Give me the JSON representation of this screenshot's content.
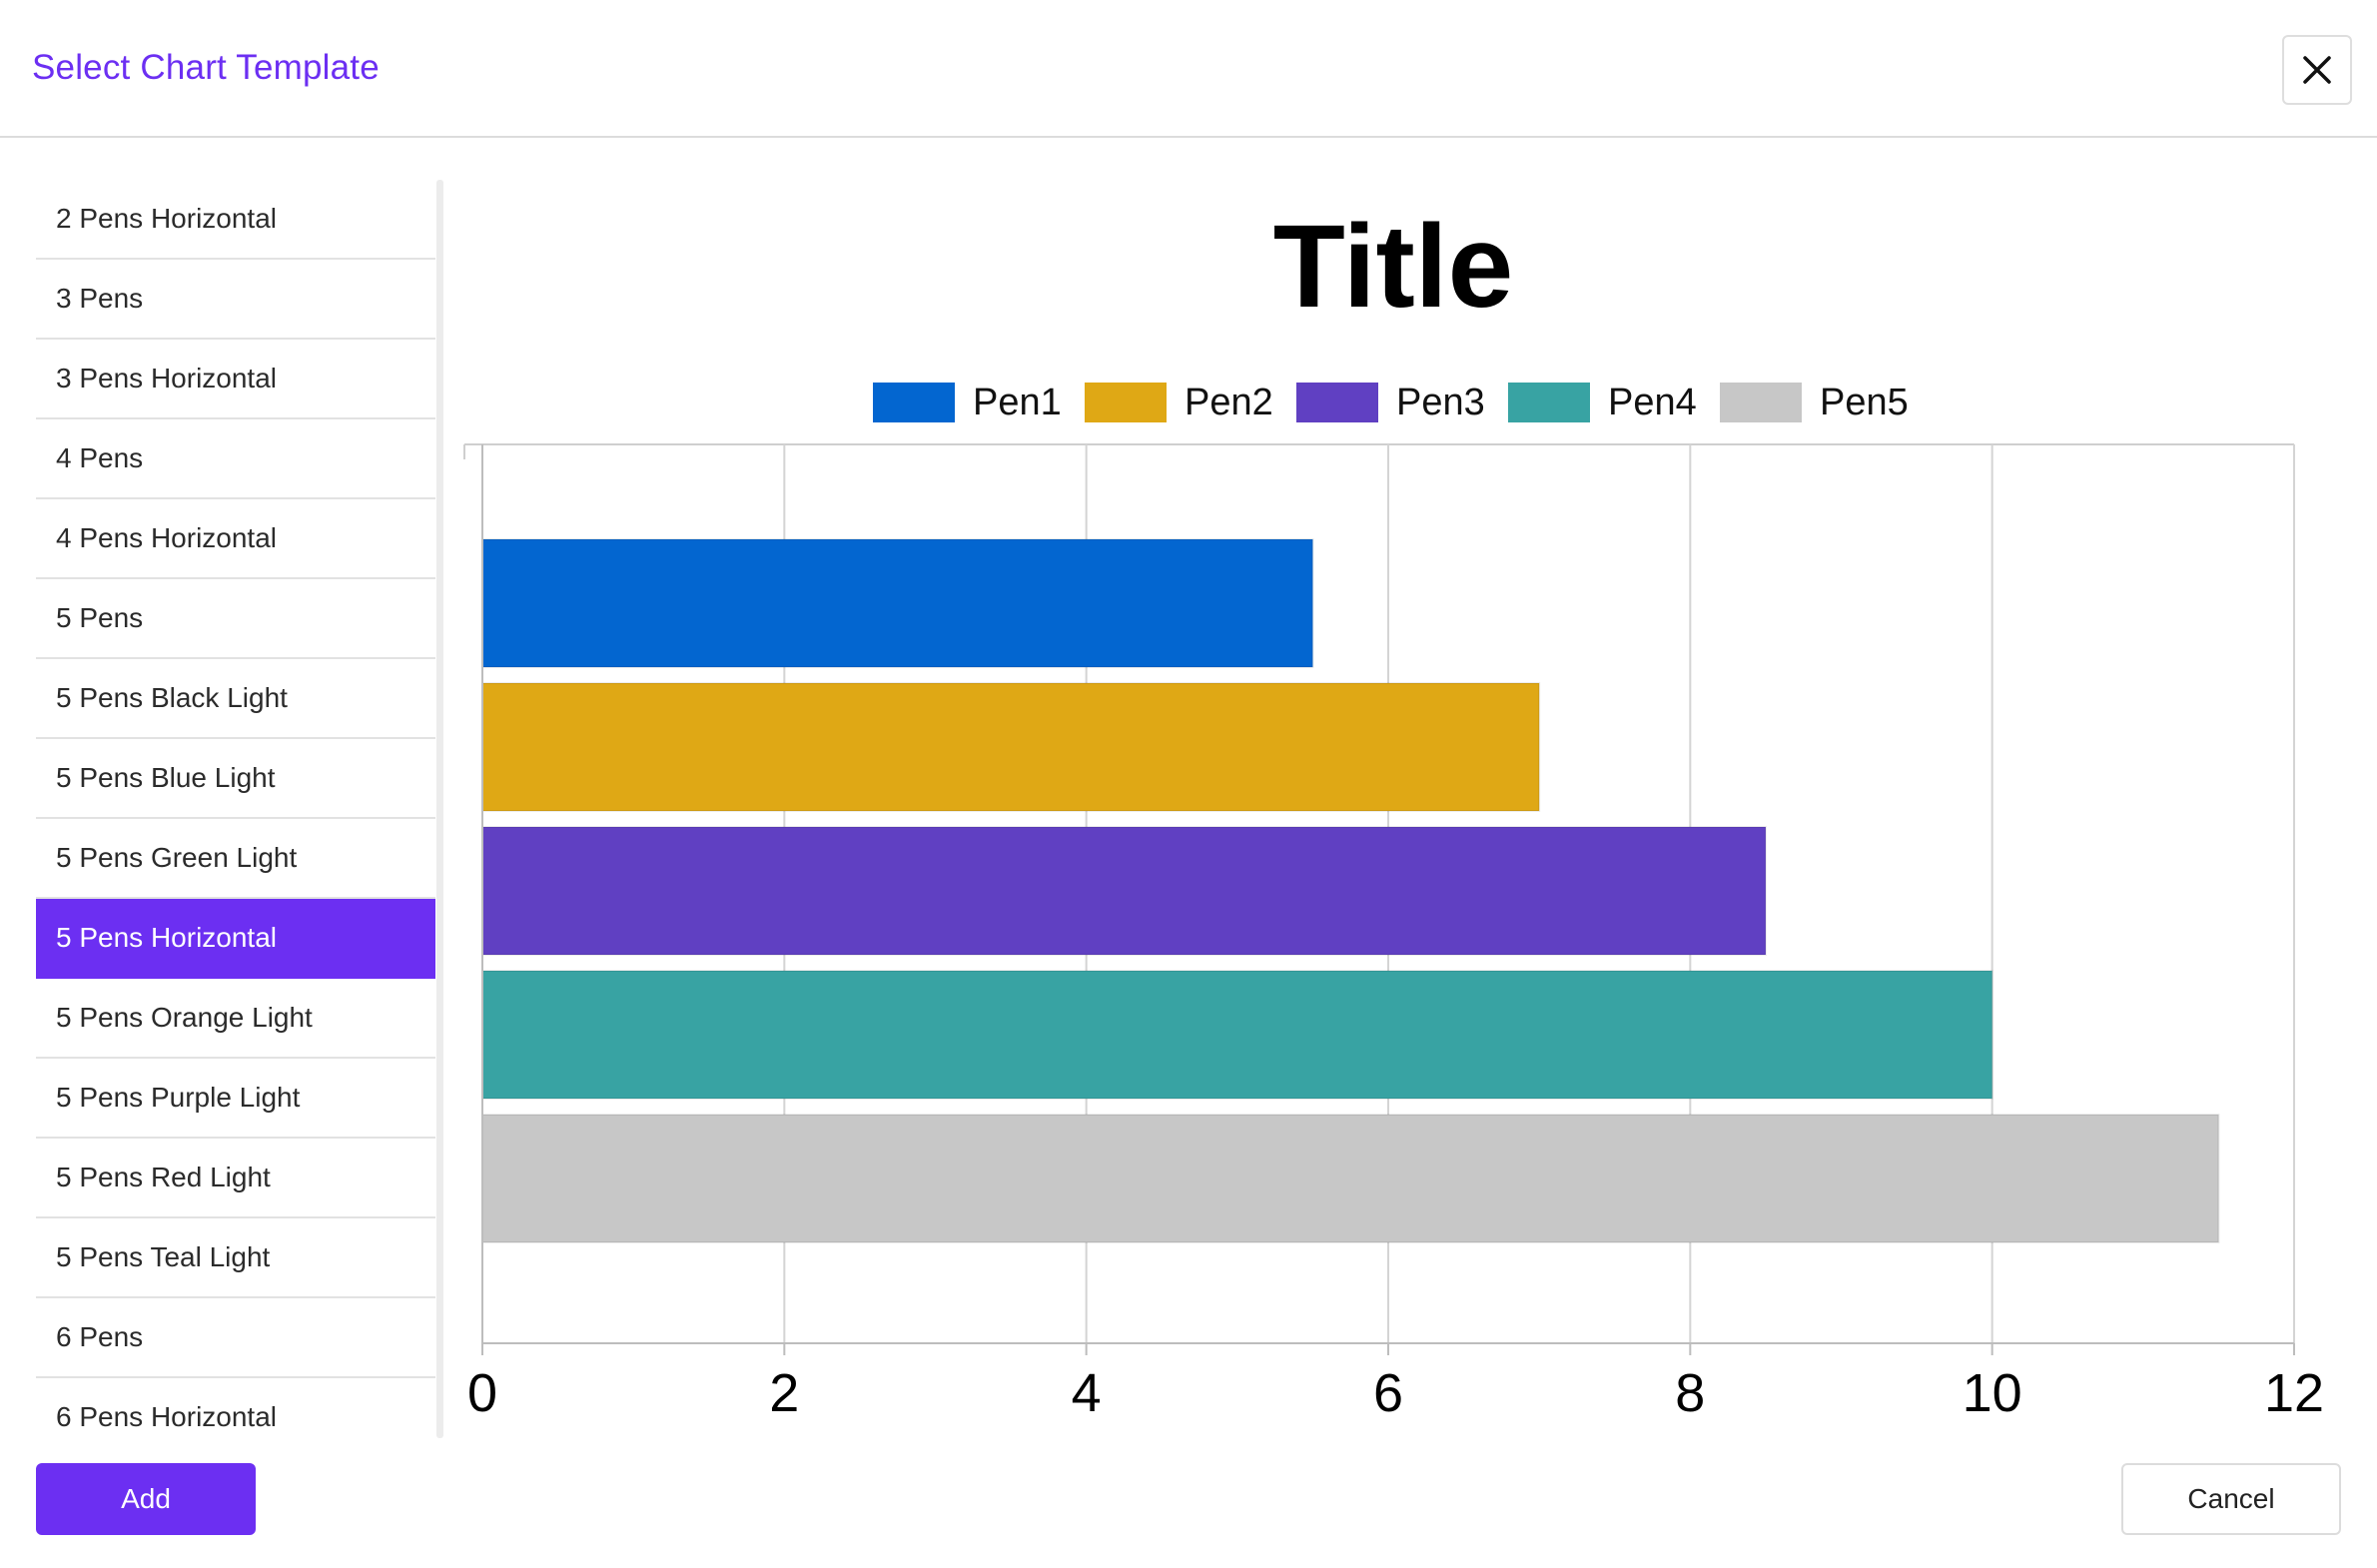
{
  "dialog": {
    "title": "Select Chart Template",
    "close_icon": "close-icon"
  },
  "templates": [
    {
      "label": "2 Pens Horizontal",
      "selected": false
    },
    {
      "label": "3 Pens",
      "selected": false
    },
    {
      "label": "3 Pens Horizontal",
      "selected": false
    },
    {
      "label": "4 Pens",
      "selected": false
    },
    {
      "label": "4 Pens Horizontal",
      "selected": false
    },
    {
      "label": "5 Pens",
      "selected": false
    },
    {
      "label": "5 Pens Black Light",
      "selected": false
    },
    {
      "label": "5 Pens Blue Light",
      "selected": false
    },
    {
      "label": "5 Pens Green Light",
      "selected": false
    },
    {
      "label": "5 Pens Horizontal",
      "selected": true
    },
    {
      "label": "5 Pens Orange Light",
      "selected": false
    },
    {
      "label": "5 Pens Purple Light",
      "selected": false
    },
    {
      "label": "5 Pens Red Light",
      "selected": false
    },
    {
      "label": "5 Pens Teal Light",
      "selected": false
    },
    {
      "label": "6 Pens",
      "selected": false
    },
    {
      "label": "6 Pens Horizontal",
      "selected": false
    }
  ],
  "footer": {
    "add_label": "Add",
    "cancel_label": "Cancel"
  },
  "colors": {
    "accent": "#6c2ff2"
  },
  "chart_data": {
    "type": "bar",
    "orientation": "horizontal",
    "title": "Title",
    "legend_position": "top-center",
    "grid": true,
    "xlim": [
      0,
      12
    ],
    "x_ticks": [
      0,
      2,
      4,
      6,
      8,
      10,
      12
    ],
    "series": [
      {
        "name": "Pen1",
        "value": 5.5,
        "color": "#0366d0"
      },
      {
        "name": "Pen2",
        "value": 7.0,
        "color": "#dfa815"
      },
      {
        "name": "Pen3",
        "value": 8.5,
        "color": "#6040c2"
      },
      {
        "name": "Pen4",
        "value": 10.0,
        "color": "#38a3a3"
      },
      {
        "name": "Pen5",
        "value": 11.5,
        "color": "#c7c7c7"
      }
    ]
  }
}
